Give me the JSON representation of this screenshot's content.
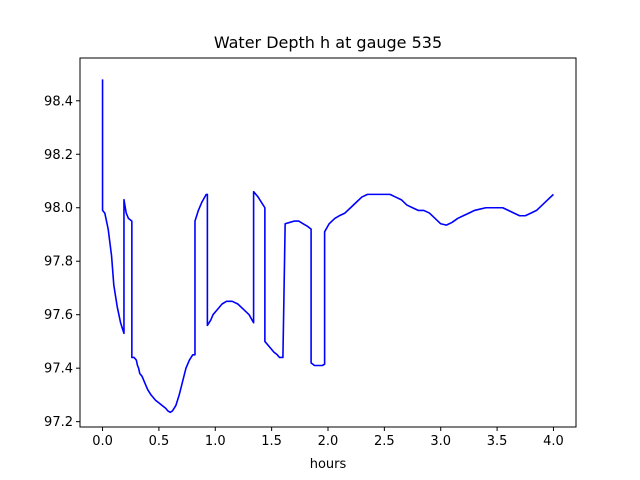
{
  "chart_data": {
    "type": "line",
    "title": "Water Depth h at gauge 535",
    "xlabel": "hours",
    "ylabel": "",
    "xlim": [
      -0.2,
      4.2
    ],
    "ylim": [
      97.18,
      98.56
    ],
    "grid": false,
    "legend": "none",
    "x_ticks": [
      0.0,
      0.5,
      1.0,
      1.5,
      2.0,
      2.5,
      3.0,
      3.5,
      4.0
    ],
    "x_tick_labels": [
      "0.0",
      "0.5",
      "1.0",
      "1.5",
      "2.0",
      "2.5",
      "3.0",
      "3.5",
      "4.0"
    ],
    "y_ticks": [
      97.2,
      97.4,
      97.6,
      97.8,
      98.0,
      98.2,
      98.4
    ],
    "y_tick_labels": [
      "97.2",
      "97.4",
      "97.6",
      "97.8",
      "98.0",
      "98.2",
      "98.4"
    ],
    "series": [
      {
        "color": "#0000ff",
        "x": [
          0.0,
          0.0,
          0.02,
          0.05,
          0.08,
          0.1,
          0.13,
          0.16,
          0.19,
          0.19,
          0.21,
          0.23,
          0.26,
          0.26,
          0.28,
          0.3,
          0.31,
          0.32,
          0.33,
          0.35,
          0.37,
          0.4,
          0.43,
          0.47,
          0.5,
          0.53,
          0.56,
          0.58,
          0.6,
          0.62,
          0.65,
          0.68,
          0.71,
          0.74,
          0.77,
          0.8,
          0.82,
          0.82,
          0.85,
          0.88,
          0.92,
          0.93,
          0.93,
          0.96,
          0.98,
          1.02,
          1.06,
          1.1,
          1.15,
          1.2,
          1.25,
          1.3,
          1.34,
          1.34,
          1.34,
          1.38,
          1.41,
          1.44,
          1.44,
          1.48,
          1.52,
          1.55,
          1.57,
          1.6,
          1.6,
          1.62,
          1.66,
          1.7,
          1.74,
          1.78,
          1.82,
          1.85,
          1.85,
          1.88,
          1.91,
          1.95,
          1.97,
          1.97,
          2.01,
          2.06,
          2.1,
          2.15,
          2.2,
          2.25,
          2.3,
          2.35,
          2.4,
          2.45,
          2.5,
          2.55,
          2.6,
          2.65,
          2.7,
          2.75,
          2.8,
          2.85,
          2.9,
          2.95,
          3.0,
          3.05,
          3.1,
          3.15,
          3.2,
          3.25,
          3.3,
          3.35,
          3.4,
          3.45,
          3.5,
          3.55,
          3.6,
          3.65,
          3.7,
          3.75,
          3.8,
          3.85,
          3.9,
          3.95,
          4.0
        ],
        "y": [
          98.48,
          97.99,
          97.98,
          97.92,
          97.82,
          97.71,
          97.63,
          97.57,
          97.53,
          98.03,
          97.98,
          97.96,
          97.95,
          97.44,
          97.44,
          97.43,
          97.41,
          97.4,
          97.38,
          97.37,
          97.35,
          97.32,
          97.3,
          97.28,
          97.27,
          97.26,
          97.25,
          97.24,
          97.235,
          97.24,
          97.26,
          97.3,
          97.35,
          97.4,
          97.43,
          97.45,
          97.45,
          97.95,
          97.99,
          98.02,
          98.05,
          98.05,
          97.56,
          97.58,
          97.6,
          97.62,
          97.64,
          97.65,
          97.65,
          97.64,
          97.62,
          97.6,
          97.57,
          97.57,
          98.06,
          98.04,
          98.02,
          98.0,
          97.5,
          97.48,
          97.46,
          97.45,
          97.44,
          97.44,
          97.44,
          97.94,
          97.945,
          97.95,
          97.95,
          97.94,
          97.93,
          97.92,
          97.42,
          97.41,
          97.41,
          97.41,
          97.415,
          97.91,
          97.94,
          97.96,
          97.97,
          97.98,
          98.0,
          98.02,
          98.04,
          98.05,
          98.05,
          98.05,
          98.05,
          98.05,
          98.04,
          98.03,
          98.01,
          98.0,
          97.99,
          97.99,
          97.98,
          97.96,
          97.94,
          97.935,
          97.945,
          97.96,
          97.97,
          97.98,
          97.99,
          97.995,
          98.0,
          98.0,
          98.0,
          98.0,
          97.99,
          97.98,
          97.97,
          97.97,
          97.98,
          97.99,
          98.01,
          98.03,
          98.05
        ]
      }
    ]
  }
}
